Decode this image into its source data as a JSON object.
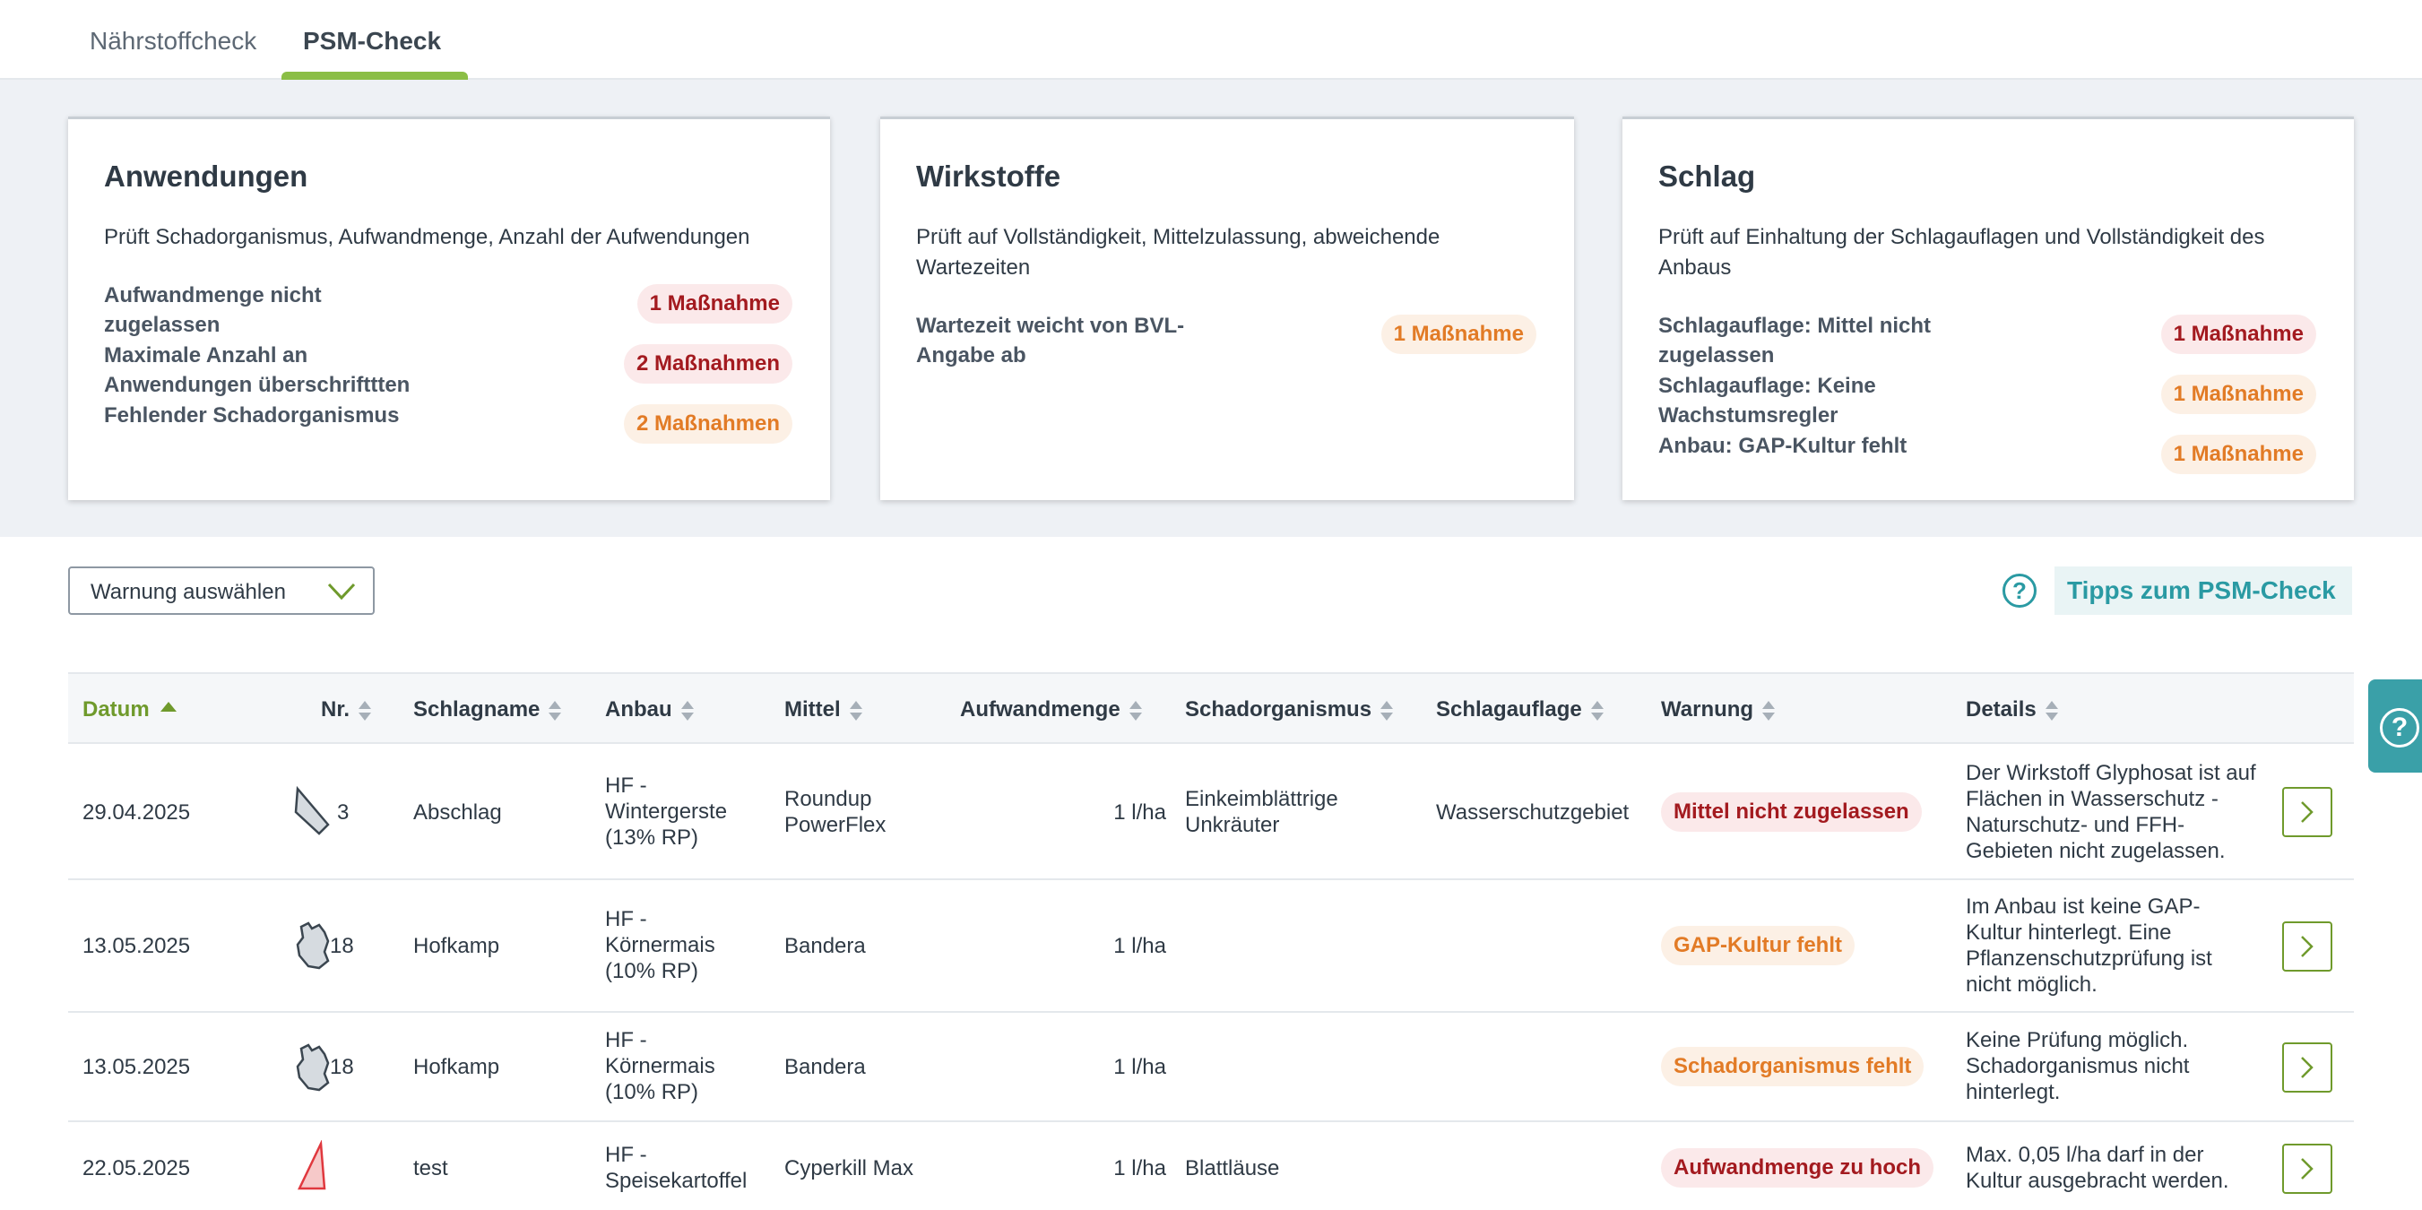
{
  "tabs": [
    {
      "label": "Nährstoffcheck"
    },
    {
      "label": "PSM-Check"
    }
  ],
  "cards": [
    {
      "title": "Anwendungen",
      "description": "Prüft Schadorganismus, Aufwandmenge, Anzahl der Aufwendungen",
      "issues": [
        {
          "label": "Aufwandmenge nicht zugelassen",
          "count": "1 Maßnahme",
          "severity": "red"
        },
        {
          "label": "Maximale Anzahl an Anwendungen überschrifttten",
          "count": "2 Maßnahmen",
          "severity": "red"
        },
        {
          "label": "Fehlender Schadorganismus",
          "count": "2 Maßnahmen",
          "severity": "orange"
        }
      ]
    },
    {
      "title": "Wirkstoffe",
      "description": "Prüft auf Vollständigkeit, Mittelzulassung, abweichende Wartezeiten",
      "issues": [
        {
          "label": "Wartezeit weicht von BVL-Angabe ab",
          "count": "1 Maßnahme",
          "severity": "orange"
        }
      ]
    },
    {
      "title": "Schlag",
      "description": "Prüft auf Einhaltung der Schlagauflagen und Vollständigkeit des Anbaus",
      "issues": [
        {
          "label": "Schlagauflage: Mittel nicht zugelassen",
          "count": "1 Maßnahme",
          "severity": "red"
        },
        {
          "label": "Schlagauflage: Keine Wachstumsregler",
          "count": "1 Maßnahme",
          "severity": "orange"
        },
        {
          "label": "Anbau: GAP-Kultur fehlt",
          "count": "1 Maßnahme",
          "severity": "orange"
        }
      ]
    }
  ],
  "toolbar": {
    "warning_select": "Warnung auswählen",
    "help_glyph": "?",
    "tips_label": "Tipps zum PSM-Check"
  },
  "side_help": {
    "glyph": "?"
  },
  "table": {
    "headers": {
      "datum": "Datum",
      "nr": "Nr.",
      "schlagname": "Schlagname",
      "anbau": "Anbau",
      "mittel": "Mittel",
      "aufwandmenge": "Aufwandmenge",
      "schadorganismus": "Schadorganismus",
      "schlagauflage": "Schlagauflage",
      "warnung": "Warnung",
      "details": "Details"
    },
    "rows": [
      {
        "datum": "29.04.2025",
        "shape": "field-shape-icon",
        "nr": "3",
        "schlagname": "Abschlag",
        "anbau": "HF - Wintergerste (13% RP)",
        "mittel": "Roundup PowerFlex",
        "aufwandmenge": "1 l/ha",
        "schadorganismus": "Einkeimblättrige Unkräuter",
        "schlagauflage": "Wasserschutzgebiet",
        "warnung": "Mittel nicht zugelassen",
        "severity": "red",
        "details": "Der Wirkstoff Glyphosat ist auf Flächen in Wasserschutz - Naturschutz- und FFH-Gebieten nicht zugelassen."
      },
      {
        "datum": "13.05.2025",
        "shape": "field-shape-icon",
        "nr": "18",
        "schlagname": "Hofkamp",
        "anbau": "HF - Körnermais (10% RP)",
        "mittel": "Bandera",
        "aufwandmenge": "1 l/ha",
        "schadorganismus": "",
        "schlagauflage": "",
        "warnung": "GAP-Kultur fehlt",
        "severity": "orange",
        "details": "Im Anbau ist keine GAP-Kultur hinterlegt. Eine Pflanzenschutzprüfung ist nicht möglich."
      },
      {
        "datum": "13.05.2025",
        "shape": "field-shape-icon",
        "nr": "18",
        "schlagname": "Hofkamp",
        "anbau": "HF - Körnermais (10% RP)",
        "mittel": "Bandera",
        "aufwandmenge": "1 l/ha",
        "schadorganismus": "",
        "schlagauflage": "",
        "warnung": "Schadorganismus fehlt",
        "severity": "orange",
        "details": "Keine Prüfung möglich. Schadorganismus nicht hinterlegt."
      },
      {
        "datum": "22.05.2025",
        "shape": "field-shape-icon",
        "nr": "",
        "schlagname": "test",
        "anbau": "HF - Speisekartoffel",
        "mittel": "Cyperkill Max",
        "aufwandmenge": "1 l/ha",
        "schadorganismus": "Blattläuse",
        "schlagauflage": "",
        "warnung": "Aufwandmenge zu hoch",
        "severity": "red",
        "details": "Max. 0,05 l/ha darf in der Kultur ausgebracht werden."
      }
    ]
  },
  "colors": {
    "accent_green": "#8bbe46",
    "teal": "#2a9aa3",
    "warning_red": "#a31a1f",
    "warning_orange": "#e27b26"
  }
}
